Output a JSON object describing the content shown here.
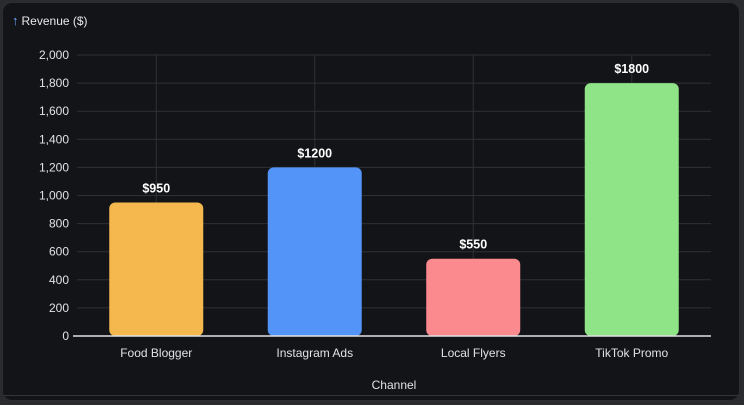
{
  "chart_data": {
    "type": "bar",
    "ylabel": "Revenue ($)",
    "xlabel": "Channel",
    "categories": [
      "Food Blogger",
      "Instagram Ads",
      "Local Flyers",
      "TikTok Promo"
    ],
    "values": [
      950,
      1200,
      550,
      1800
    ],
    "data_labels": [
      "$950",
      "$1200",
      "$550",
      "$1800"
    ],
    "bar_colors": [
      "#f4b84f",
      "#5294f8",
      "#fb8a8f",
      "#8ee486"
    ],
    "ylim": [
      0,
      2000
    ],
    "yticks": [
      0,
      200,
      400,
      600,
      800,
      1000,
      1200,
      1400,
      1600,
      1800,
      2000
    ],
    "ytick_labels": [
      "0",
      "200",
      "400",
      "600",
      "800",
      "1,000",
      "1,200",
      "1,400",
      "1,600",
      "1,800",
      "2,000"
    ],
    "grid": true,
    "legend": "none"
  },
  "colors": {
    "background": "#131417",
    "grid": "#2f3035",
    "axis": "#e2e2e4",
    "y_arrow": "#6ea8ff"
  }
}
